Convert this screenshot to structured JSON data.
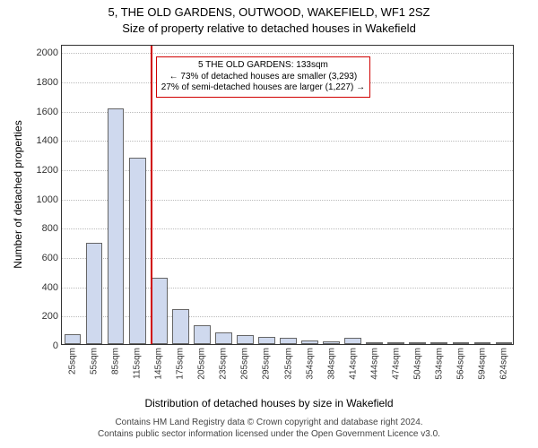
{
  "chart": {
    "type": "histogram",
    "title_main": "5, THE OLD GARDENS, OUTWOOD, WAKEFIELD, WF1 2SZ",
    "title_sub": "Size of property relative to detached houses in Wakefield",
    "ylabel": "Number of detached properties",
    "xlabel": "Distribution of detached houses by size in Wakefield",
    "yticks": [
      0,
      200,
      400,
      600,
      800,
      1000,
      1200,
      1400,
      1600,
      1800,
      2000
    ],
    "ymax": 2050,
    "xticks": [
      "25sqm",
      "55sqm",
      "85sqm",
      "115sqm",
      "145sqm",
      "175sqm",
      "205sqm",
      "235sqm",
      "265sqm",
      "295sqm",
      "325sqm",
      "354sqm",
      "384sqm",
      "414sqm",
      "444sqm",
      "474sqm",
      "504sqm",
      "534sqm",
      "564sqm",
      "594sqm",
      "624sqm"
    ],
    "bars": [
      70,
      690,
      1610,
      1270,
      450,
      240,
      130,
      80,
      60,
      50,
      40,
      25,
      20,
      45,
      12,
      10,
      8,
      8,
      6,
      5,
      5
    ],
    "bar_fill": "#cfd9ee",
    "bar_border": "#666666",
    "grid_color": "#bbbbbb",
    "background_color": "#ffffff",
    "marker_value_sqm": 133,
    "marker_line_color": "#d00000",
    "annotation": {
      "line1": "5 THE OLD GARDENS: 133sqm",
      "line2": "← 73% of detached houses are smaller (3,293)",
      "line3": "27% of semi-detached houses are larger (1,227) →",
      "border_color": "#d00000",
      "bg_color": "#ffffff",
      "fontsize": 10
    },
    "footer_line1": "Contains HM Land Registry data © Crown copyright and database right 2024.",
    "footer_line2": "Contains public sector information licensed under the Open Government Licence v3.0.",
    "title_fontsize": 13,
    "label_fontsize": 12,
    "tick_fontsize": 11,
    "xtick_fontsize": 10
  }
}
